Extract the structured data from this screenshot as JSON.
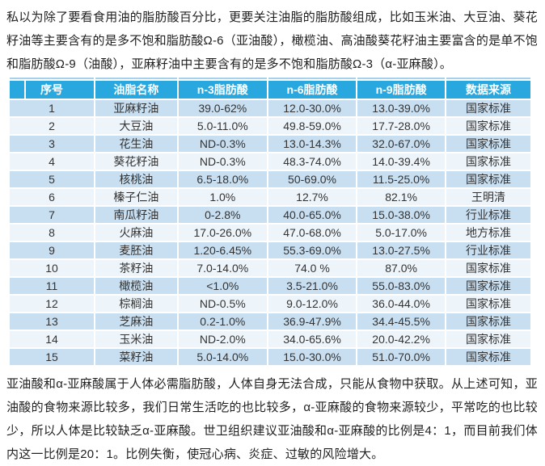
{
  "intro_paragraph": "私以为除了要看食用油的脂肪酸百分比，更要关注油脂的脂肪酸组成，比如玉米油、大豆油、葵花籽油等主要含有的是多不饱和脂肪酸Ω-6（亚油酸），橄榄油、高油酸葵花籽油主要富含的是单不饱和脂肪酸Ω-9（油酸），亚麻籽油中主要含有的是多不饱和脂肪酸Ω-3（α-亚麻酸）。",
  "table": {
    "headers": [
      "序号",
      "油脂名称",
      "n-3脂肪酸",
      "n-6脂肪酸",
      "n-9脂肪酸",
      "数据来源"
    ],
    "rows": [
      [
        "1",
        "亚麻籽油",
        "39.0-62%",
        "12.0-30.0%",
        "13.0-39.0%",
        "国家标准"
      ],
      [
        "2",
        "大豆油",
        "5.0-11.0%",
        "49.8-59.0%",
        "17.7-28.0%",
        "国家标准"
      ],
      [
        "3",
        "花生油",
        "ND-0.3%",
        "13.0-14.3%",
        "32.0-67.0%",
        "国家标准"
      ],
      [
        "4",
        "葵花籽油",
        "ND-0.3%",
        "48.3-74.0%",
        "14.0-39.4%",
        "国家标准"
      ],
      [
        "5",
        "核桃油",
        "6.5-18.0%",
        "50-69.0%",
        "11.5-25.0%",
        "国家标准"
      ],
      [
        "6",
        "榛子仁油",
        "1.0%",
        "12.7%",
        "82.1%",
        "王明清"
      ],
      [
        "7",
        "南瓜籽油",
        "0-2.8%",
        "40.0-65.0%",
        "15.0-38.0%",
        "行业标准"
      ],
      [
        "8",
        "火麻油",
        "17.0-26.0%",
        "47.0-68.0%",
        "5.0-17.0%",
        "地方标准"
      ],
      [
        "9",
        "麦胚油",
        "1.20-6.45%",
        "55.3-69.0%",
        "13.0-27.5%",
        "行业标准"
      ],
      [
        "10",
        "茶籽油",
        "7.0-14.0%",
        "74.0 %",
        "87.0%",
        "国家标准"
      ],
      [
        "11",
        "橄榄油",
        "<1.0%",
        "3.5-21.0%",
        "55.0-83.0%",
        "国家标准"
      ],
      [
        "12",
        "棕榈油",
        "ND-0.5%",
        "9.0-12.0%",
        "36.0-44.0%",
        "国家标准"
      ],
      [
        "13",
        "芝麻油",
        "0.2-1.0%",
        "36.9-47.9%",
        "34.4-45.5%",
        "国家标准"
      ],
      [
        "14",
        "玉米油",
        "ND-2.0%",
        "34.0-65.6%",
        "20.0-42.2%",
        "国家标准"
      ],
      [
        "15",
        "菜籽油",
        "5.0-14.0%",
        "15.0-30.0%",
        "51.0-70.0%",
        "国家标准"
      ]
    ]
  },
  "closing_paragraph": "亚油酸和α-亚麻酸属于人体必需脂肪酸，人体自身无法合成，只能从食物中获取。从上述可知，亚油酸的食物来源比较多，我们日常生活吃的也比较多，α-亚麻酸的食物来源较少，平常吃的也比较少，所以人体是比较缺乏α-亚麻酸。世卫组织建议亚油酸和α-亚麻酸的比例是4：1，而目前我们体内这一比例是20：1。比例失衡，使冠心病、炎症、过敏的风险增大。",
  "colors": {
    "header_bg": "#29a8e0",
    "row_shaded_bg": "#c8dff2",
    "row_light_bg": "#edf5fb",
    "table_top_border": "#a6d2ee",
    "header_text": "#ffffff",
    "body_text": "#1f1f1f",
    "table_text": "#333333"
  }
}
